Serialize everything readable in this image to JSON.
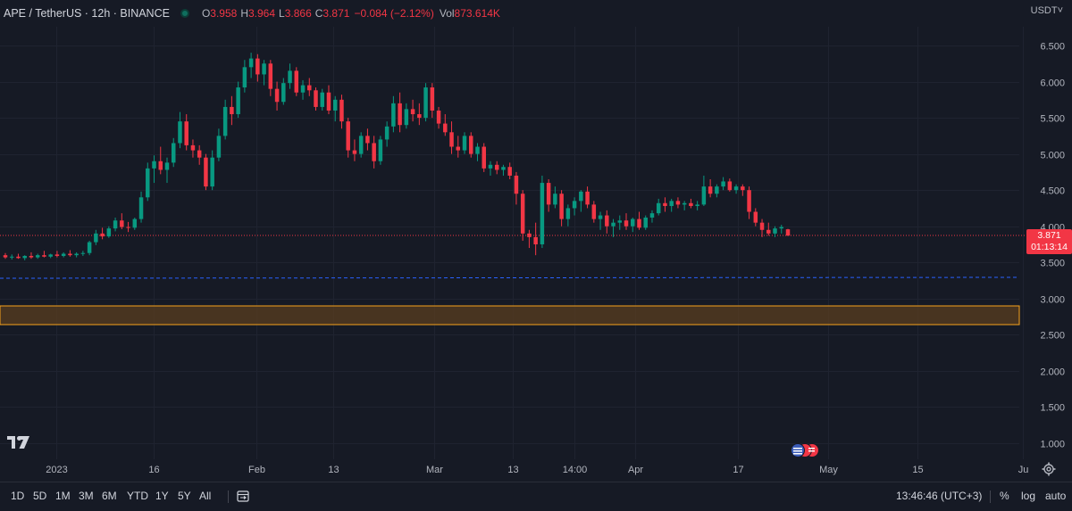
{
  "legend": {
    "symbol": "APE / TetherUS · 12h · BINANCE",
    "o_label": "O",
    "o_value": "3.958",
    "h_label": "H",
    "h_value": "3.964",
    "l_label": "L",
    "l_value": "3.866",
    "c_label": "C",
    "c_value": "3.871",
    "change": "−0.084 (−2.12%)",
    "vol_label": "Vol",
    "vol_value": "873.614K"
  },
  "price_scale_currency": "USDT˅",
  "last_price": {
    "value": "3.871",
    "countdown": "01:13:14"
  },
  "colors": {
    "background": "#161a25",
    "up": "#089981",
    "down": "#f23645",
    "zone": "#f7a21b",
    "hline": "#2962ff"
  },
  "bottom_toolbar": {
    "timeframes": [
      "1D",
      "5D",
      "1M",
      "3M",
      "6M",
      "YTD",
      "1Y",
      "5Y",
      "All"
    ],
    "clock": "13:46:46 (UTC+3)",
    "percent": "%",
    "log": "log",
    "auto": "auto"
  },
  "icons": [
    "compare-range-icon",
    "tradingview-logo-icon",
    "settings-gear-icon",
    "economic-events-icon"
  ],
  "chart_data": {
    "type": "candlestick",
    "ylim": [
      0.9,
      6.75
    ],
    "y_ticks": [
      1.0,
      1.5,
      2.0,
      2.5,
      3.0,
      3.5,
      4.0,
      4.5,
      5.0,
      5.5,
      6.0,
      6.5
    ],
    "x_ticks": [
      "2023",
      "16",
      "Feb",
      "13",
      "Mar",
      "13",
      "14:00",
      "Apr",
      "17",
      "May",
      "15",
      "Ju"
    ],
    "period": "12h",
    "ohlc": [
      [
        3.6,
        3.63,
        3.55,
        3.57
      ],
      [
        3.57,
        3.61,
        3.54,
        3.58
      ],
      [
        3.58,
        3.62,
        3.55,
        3.56
      ],
      [
        3.56,
        3.6,
        3.53,
        3.59
      ],
      [
        3.59,
        3.64,
        3.55,
        3.57
      ],
      [
        3.57,
        3.62,
        3.55,
        3.6
      ],
      [
        3.6,
        3.66,
        3.57,
        3.58
      ],
      [
        3.58,
        3.62,
        3.56,
        3.61
      ],
      [
        3.61,
        3.66,
        3.57,
        3.59
      ],
      [
        3.59,
        3.64,
        3.57,
        3.62
      ],
      [
        3.62,
        3.67,
        3.58,
        3.6
      ],
      [
        3.6,
        3.64,
        3.57,
        3.62
      ],
      [
        3.62,
        3.66,
        3.59,
        3.63
      ],
      [
        3.63,
        3.8,
        3.6,
        3.78
      ],
      [
        3.78,
        3.95,
        3.74,
        3.9
      ],
      [
        3.9,
        3.98,
        3.82,
        3.86
      ],
      [
        3.86,
        4.0,
        3.84,
        3.97
      ],
      [
        3.97,
        4.12,
        3.93,
        4.08
      ],
      [
        4.08,
        4.18,
        3.96,
        3.99
      ],
      [
        3.99,
        4.06,
        3.92,
        3.98
      ],
      [
        3.98,
        4.12,
        3.95,
        4.1
      ],
      [
        4.1,
        4.48,
        4.05,
        4.4
      ],
      [
        4.4,
        4.88,
        4.35,
        4.8
      ],
      [
        4.8,
        4.98,
        4.6,
        4.9
      ],
      [
        4.9,
        5.1,
        4.72,
        4.78
      ],
      [
        4.78,
        4.95,
        4.6,
        4.88
      ],
      [
        4.88,
        5.22,
        4.82,
        5.15
      ],
      [
        5.15,
        5.58,
        5.08,
        5.45
      ],
      [
        5.45,
        5.55,
        5.05,
        5.12
      ],
      [
        5.12,
        5.2,
        4.95,
        5.05
      ],
      [
        5.05,
        5.12,
        4.85,
        4.95
      ],
      [
        4.95,
        5.0,
        4.5,
        4.55
      ],
      [
        4.55,
        5.05,
        4.5,
        4.95
      ],
      [
        4.95,
        5.35,
        4.9,
        5.25
      ],
      [
        5.25,
        5.75,
        5.2,
        5.65
      ],
      [
        5.65,
        5.8,
        5.4,
        5.55
      ],
      [
        5.55,
        6.0,
        5.5,
        5.92
      ],
      [
        5.92,
        6.3,
        5.85,
        6.2
      ],
      [
        6.2,
        6.4,
        6.05,
        6.32
      ],
      [
        6.32,
        6.38,
        6.0,
        6.1
      ],
      [
        6.1,
        6.3,
        5.95,
        6.25
      ],
      [
        6.25,
        6.3,
        5.8,
        5.9
      ],
      [
        5.9,
        6.0,
        5.6,
        5.72
      ],
      [
        5.72,
        6.05,
        5.68,
        5.98
      ],
      [
        5.98,
        6.25,
        5.9,
        6.15
      ],
      [
        6.15,
        6.2,
        5.8,
        5.85
      ],
      [
        5.85,
        6.02,
        5.75,
        5.95
      ],
      [
        5.95,
        6.05,
        5.8,
        5.88
      ],
      [
        5.88,
        5.92,
        5.6,
        5.65
      ],
      [
        5.65,
        5.9,
        5.6,
        5.85
      ],
      [
        5.85,
        5.95,
        5.55,
        5.6
      ],
      [
        5.6,
        5.8,
        5.45,
        5.75
      ],
      [
        5.75,
        5.82,
        5.35,
        5.45
      ],
      [
        5.45,
        5.5,
        4.95,
        5.05
      ],
      [
        5.05,
        5.2,
        4.9,
        5.0
      ],
      [
        5.0,
        5.3,
        4.95,
        5.25
      ],
      [
        5.25,
        5.35,
        5.05,
        5.15
      ],
      [
        5.15,
        5.25,
        4.8,
        4.9
      ],
      [
        4.9,
        5.25,
        4.85,
        5.2
      ],
      [
        5.2,
        5.45,
        5.1,
        5.38
      ],
      [
        5.38,
        5.8,
        5.3,
        5.7
      ],
      [
        5.7,
        5.85,
        5.3,
        5.4
      ],
      [
        5.4,
        5.7,
        5.35,
        5.62
      ],
      [
        5.62,
        5.75,
        5.45,
        5.55
      ],
      [
        5.55,
        5.7,
        5.4,
        5.5
      ],
      [
        5.5,
        5.98,
        5.45,
        5.92
      ],
      [
        5.92,
        5.98,
        5.5,
        5.6
      ],
      [
        5.6,
        5.65,
        5.35,
        5.42
      ],
      [
        5.42,
        5.55,
        5.25,
        5.3
      ],
      [
        5.3,
        5.45,
        5.0,
        5.1
      ],
      [
        5.1,
        5.25,
        4.95,
        5.05
      ],
      [
        5.05,
        5.3,
        5.0,
        5.25
      ],
      [
        5.25,
        5.3,
        4.95,
        5.0
      ],
      [
        5.0,
        5.15,
        4.9,
        5.1
      ],
      [
        5.1,
        5.15,
        4.75,
        4.8
      ],
      [
        4.8,
        4.9,
        4.7,
        4.85
      ],
      [
        4.85,
        4.9,
        4.72,
        4.78
      ],
      [
        4.78,
        4.85,
        4.7,
        4.82
      ],
      [
        4.82,
        4.88,
        4.65,
        4.7
      ],
      [
        4.7,
        4.75,
        4.3,
        4.45
      ],
      [
        4.45,
        4.5,
        3.8,
        3.9
      ],
      [
        3.9,
        3.95,
        3.7,
        3.85
      ],
      [
        3.85,
        4.05,
        3.6,
        3.75
      ],
      [
        3.75,
        4.7,
        3.7,
        4.6
      ],
      [
        4.6,
        4.65,
        4.2,
        4.3
      ],
      [
        4.3,
        4.55,
        4.25,
        4.45
      ],
      [
        4.45,
        4.5,
        4.0,
        4.1
      ],
      [
        4.1,
        4.3,
        4.0,
        4.25
      ],
      [
        4.25,
        4.4,
        4.15,
        4.35
      ],
      [
        4.35,
        4.5,
        4.2,
        4.48
      ],
      [
        4.48,
        4.55,
        4.25,
        4.3
      ],
      [
        4.3,
        4.35,
        4.05,
        4.1
      ],
      [
        4.1,
        4.2,
        3.95,
        4.15
      ],
      [
        4.15,
        4.22,
        3.9,
        4.0
      ],
      [
        4.0,
        4.1,
        3.85,
        4.05
      ],
      [
        4.05,
        4.15,
        3.95,
        4.08
      ],
      [
        4.08,
        4.18,
        3.95,
        4.0
      ],
      [
        4.0,
        4.12,
        3.92,
        4.1
      ],
      [
        4.1,
        4.2,
        3.95,
        3.98
      ],
      [
        3.98,
        4.15,
        3.95,
        4.12
      ],
      [
        4.12,
        4.22,
        4.05,
        4.18
      ],
      [
        4.18,
        4.38,
        4.15,
        4.32
      ],
      [
        4.32,
        4.4,
        4.2,
        4.28
      ],
      [
        4.28,
        4.38,
        4.2,
        4.35
      ],
      [
        4.35,
        4.4,
        4.25,
        4.3
      ],
      [
        4.3,
        4.35,
        4.22,
        4.32
      ],
      [
        4.32,
        4.38,
        4.25,
        4.28
      ],
      [
        4.28,
        4.35,
        4.22,
        4.3
      ],
      [
        4.3,
        4.7,
        4.28,
        4.55
      ],
      [
        4.55,
        4.65,
        4.4,
        4.45
      ],
      [
        4.45,
        4.58,
        4.4,
        4.55
      ],
      [
        4.55,
        4.68,
        4.5,
        4.62
      ],
      [
        4.62,
        4.66,
        4.48,
        4.5
      ],
      [
        4.5,
        4.58,
        4.45,
        4.55
      ],
      [
        4.55,
        4.58,
        4.42,
        4.5
      ],
      [
        4.5,
        4.55,
        4.1,
        4.2
      ],
      [
        4.2,
        4.25,
        4.0,
        4.05
      ],
      [
        4.05,
        4.1,
        3.85,
        3.95
      ],
      [
        3.95,
        4.05,
        3.87,
        3.9
      ],
      [
        3.9,
        4.0,
        3.85,
        3.97
      ],
      [
        3.97,
        4.02,
        3.9,
        3.99
      ],
      [
        3.958,
        3.964,
        3.866,
        3.871
      ]
    ]
  }
}
